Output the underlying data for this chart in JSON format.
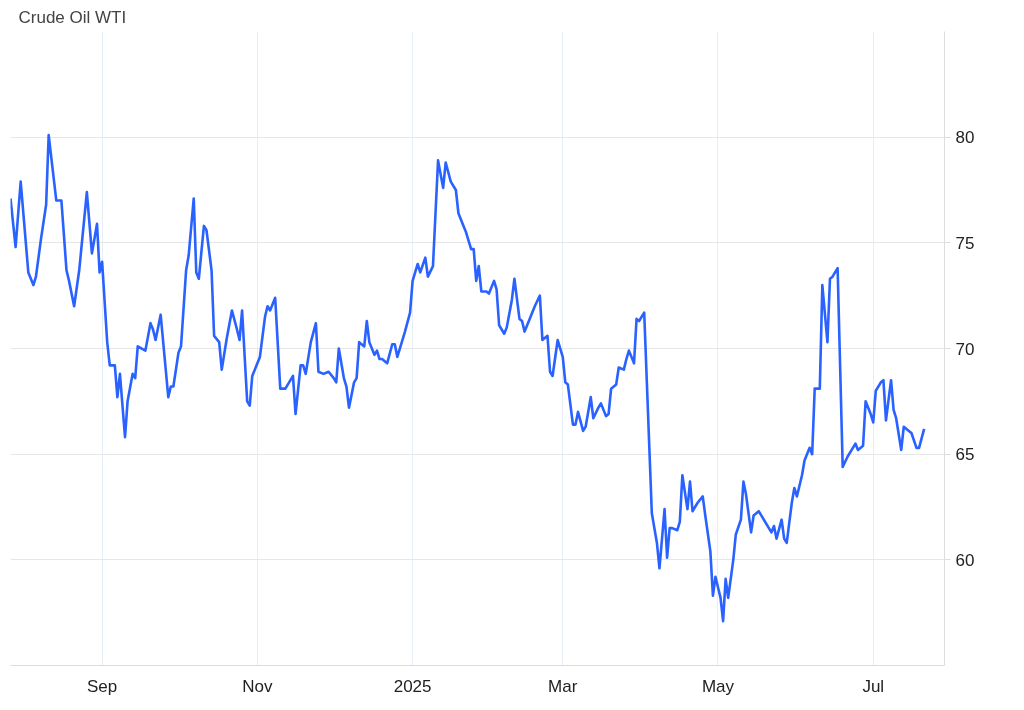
{
  "chart_data": {
    "type": "line",
    "title": "Crude Oil WTI",
    "x": [
      "2024-07-27",
      "2024-07-29",
      "2024-07-31",
      "2024-08-03",
      "2024-08-05",
      "2024-08-06",
      "2024-08-08",
      "2024-08-10",
      "2024-08-11",
      "2024-08-14",
      "2024-08-16",
      "2024-08-18",
      "2024-08-19",
      "2024-08-21",
      "2024-08-23",
      "2024-08-26",
      "2024-08-28",
      "2024-08-30",
      "2024-08-31",
      "2024-09-01",
      "2024-09-03",
      "2024-09-04",
      "2024-09-06",
      "2024-09-07",
      "2024-09-08",
      "2024-09-10",
      "2024-09-11",
      "2024-09-13",
      "2024-09-14",
      "2024-09-15",
      "2024-09-18",
      "2024-09-20",
      "2024-09-21",
      "2024-09-22",
      "2024-09-24",
      "2024-09-27",
      "2024-09-28",
      "2024-09-29",
      "2024-10-01",
      "2024-10-02",
      "2024-10-04",
      "2024-10-05",
      "2024-10-07",
      "2024-10-08",
      "2024-10-09",
      "2024-10-11",
      "2024-10-12",
      "2024-10-14",
      "2024-10-15",
      "2024-10-17",
      "2024-10-18",
      "2024-10-20",
      "2024-10-22",
      "2024-10-24",
      "2024-10-25",
      "2024-10-26",
      "2024-10-28",
      "2024-10-29",
      "2024-10-30",
      "2024-11-01",
      "2024-11-02",
      "2024-11-04",
      "2024-11-05",
      "2024-11-06",
      "2024-11-08",
      "2024-11-10",
      "2024-11-12",
      "2024-11-14",
      "2024-11-15",
      "2024-11-16",
      "2024-11-18",
      "2024-11-19",
      "2024-11-20",
      "2024-11-22",
      "2024-11-24",
      "2024-11-25",
      "2024-11-27",
      "2024-11-29",
      "2024-12-01",
      "2024-12-02",
      "2024-12-03",
      "2024-12-05",
      "2024-12-06",
      "2024-12-07",
      "2024-12-09",
      "2024-12-10",
      "2024-12-11",
      "2024-12-13",
      "2024-12-14",
      "2024-12-15",
      "2024-12-17",
      "2024-12-18",
      "2024-12-19",
      "2024-12-20",
      "2024-12-22",
      "2024-12-24",
      "2024-12-25",
      "2024-12-26",
      "2024-12-28",
      "2024-12-29",
      "2024-12-31",
      "2025-01-01",
      "2025-01-03",
      "2025-01-04",
      "2025-01-06",
      "2025-01-07",
      "2025-01-09",
      "2025-01-11",
      "2025-01-13",
      "2025-01-14",
      "2025-01-16",
      "2025-01-18",
      "2025-01-19",
      "2025-01-21",
      "2025-01-22",
      "2025-01-24",
      "2025-01-25",
      "2025-01-26",
      "2025-01-27",
      "2025-01-28",
      "2025-01-30",
      "2025-01-31",
      "2025-02-02",
      "2025-02-03",
      "2025-02-04",
      "2025-02-06",
      "2025-02-07",
      "2025-02-09",
      "2025-02-10",
      "2025-02-12",
      "2025-02-13",
      "2025-02-14",
      "2025-02-16",
      "2025-02-18",
      "2025-02-20",
      "2025-02-21",
      "2025-02-23",
      "2025-02-24",
      "2025-02-25",
      "2025-02-27",
      "2025-03-01",
      "2025-03-02",
      "2025-03-03",
      "2025-03-05",
      "2025-03-06",
      "2025-03-07",
      "2025-03-09",
      "2025-03-10",
      "2025-03-12",
      "2025-03-13",
      "2025-03-15",
      "2025-03-16",
      "2025-03-18",
      "2025-03-19",
      "2025-03-20",
      "2025-03-22",
      "2025-03-23",
      "2025-03-25",
      "2025-03-26",
      "2025-03-27",
      "2025-03-29",
      "2025-03-30",
      "2025-03-31",
      "2025-04-02",
      "2025-04-05",
      "2025-04-07",
      "2025-04-08",
      "2025-04-10",
      "2025-04-11",
      "2025-04-12",
      "2025-04-13",
      "2025-04-15",
      "2025-04-16",
      "2025-04-17",
      "2025-04-19",
      "2025-04-20",
      "2025-04-21",
      "2025-04-23",
      "2025-04-25",
      "2025-04-26",
      "2025-04-28",
      "2025-04-29",
      "2025-04-30",
      "2025-05-02",
      "2025-05-03",
      "2025-05-04",
      "2025-05-05",
      "2025-05-07",
      "2025-05-08",
      "2025-05-10",
      "2025-05-11",
      "2025-05-12",
      "2025-05-14",
      "2025-05-15",
      "2025-05-17",
      "2025-05-18",
      "2025-05-21",
      "2025-05-22",
      "2025-05-23",
      "2025-05-24",
      "2025-05-26",
      "2025-05-27",
      "2025-05-28",
      "2025-05-30",
      "2025-05-31",
      "2025-06-01",
      "2025-06-03",
      "2025-06-04",
      "2025-06-06",
      "2025-06-07",
      "2025-06-08",
      "2025-06-10",
      "2025-06-11",
      "2025-06-13",
      "2025-06-14",
      "2025-06-15",
      "2025-06-17",
      "2025-06-19",
      "2025-06-21",
      "2025-06-23",
      "2025-06-24",
      "2025-06-25",
      "2025-06-27",
      "2025-06-28",
      "2025-06-30",
      "2025-07-01",
      "2025-07-02",
      "2025-07-04",
      "2025-07-05",
      "2025-07-06",
      "2025-07-08",
      "2025-07-09",
      "2025-07-10",
      "2025-07-12",
      "2025-07-13",
      "2025-07-15",
      "2025-07-16",
      "2025-07-18",
      "2025-07-19",
      "2025-07-21"
    ],
    "series": [
      {
        "color": "#2962ff",
        "values": [
          77.1,
          74.8,
          77.9,
          73.6,
          73.0,
          73.4,
          75.2,
          76.8,
          80.1,
          77.0,
          77.0,
          73.7,
          73.2,
          72.0,
          73.7,
          77.4,
          74.5,
          75.9,
          73.6,
          74.1,
          70.3,
          69.2,
          69.2,
          67.7,
          68.8,
          65.8,
          67.5,
          68.8,
          68.6,
          70.1,
          69.9,
          71.2,
          70.9,
          70.4,
          71.6,
          67.7,
          68.2,
          68.2,
          69.8,
          70.1,
          73.7,
          74.4,
          77.1,
          73.6,
          73.3,
          75.8,
          75.6,
          73.7,
          70.6,
          70.3,
          69.0,
          70.5,
          71.8,
          70.9,
          70.4,
          71.8,
          67.5,
          67.3,
          68.7,
          69.3,
          69.6,
          71.5,
          72.0,
          71.8,
          72.4,
          68.1,
          68.1,
          68.5,
          68.7,
          66.9,
          69.2,
          69.2,
          68.8,
          70.3,
          71.2,
          68.9,
          68.8,
          68.9,
          68.6,
          68.4,
          70.0,
          68.6,
          68.2,
          67.2,
          68.4,
          68.6,
          70.3,
          70.1,
          71.3,
          70.3,
          69.7,
          69.9,
          69.5,
          69.5,
          69.3,
          70.2,
          70.2,
          69.6,
          70.4,
          70.8,
          71.7,
          73.2,
          74.0,
          73.6,
          74.3,
          73.4,
          73.9,
          78.9,
          77.6,
          78.8,
          77.9,
          77.5,
          76.4,
          75.8,
          75.5,
          74.7,
          74.7,
          73.2,
          73.9,
          72.7,
          72.7,
          72.6,
          73.2,
          72.8,
          71.1,
          70.7,
          71.0,
          72.3,
          73.3,
          71.4,
          71.3,
          70.8,
          71.4,
          72.0,
          72.5,
          70.4,
          70.6,
          68.9,
          68.7,
          70.4,
          69.6,
          68.4,
          68.3,
          66.4,
          66.4,
          67.0,
          66.1,
          66.3,
          67.7,
          66.7,
          67.2,
          67.4,
          66.8,
          66.9,
          68.1,
          68.3,
          69.1,
          69.0,
          69.5,
          69.9,
          69.3,
          71.4,
          71.3,
          71.7,
          62.2,
          60.8,
          59.6,
          62.4,
          60.1,
          61.5,
          61.5,
          61.4,
          61.8,
          64.0,
          62.4,
          63.7,
          62.3,
          62.7,
          63.0,
          62.1,
          60.4,
          58.3,
          59.2,
          58.2,
          57.1,
          59.1,
          58.2,
          60.0,
          61.2,
          61.9,
          63.7,
          63.1,
          61.3,
          62.1,
          62.3,
          62.1,
          61.5,
          61.3,
          61.6,
          61.0,
          61.9,
          61.0,
          60.8,
          62.7,
          63.4,
          63.0,
          64.0,
          64.7,
          65.3,
          65.0,
          68.1,
          68.1,
          73.0,
          70.3,
          73.3,
          73.4,
          73.8,
          64.4,
          64.9,
          65.3,
          65.5,
          65.2,
          65.4,
          67.5,
          66.9,
          66.5,
          68.0,
          68.4,
          68.5,
          66.6,
          68.5,
          67.1,
          66.7,
          65.2,
          66.3,
          66.1,
          66.0,
          65.3,
          65.3,
          66.2
        ]
      }
    ],
    "xlim": [
      "2024-07-27",
      "2025-07-29"
    ],
    "xticks": [
      {
        "value": "2024-09-01",
        "label": "Sep"
      },
      {
        "value": "2024-11-01",
        "label": "Nov"
      },
      {
        "value": "2025-01-01",
        "label": "2025"
      },
      {
        "value": "2025-03-01",
        "label": "Mar"
      },
      {
        "value": "2025-05-01",
        "label": "May"
      },
      {
        "value": "2025-07-01",
        "label": "Jul"
      }
    ],
    "ylim": [
      55,
      85
    ],
    "yticks": [
      60,
      65,
      70,
      75,
      80
    ],
    "grid": true,
    "marker": "none",
    "line_style": "solid"
  }
}
